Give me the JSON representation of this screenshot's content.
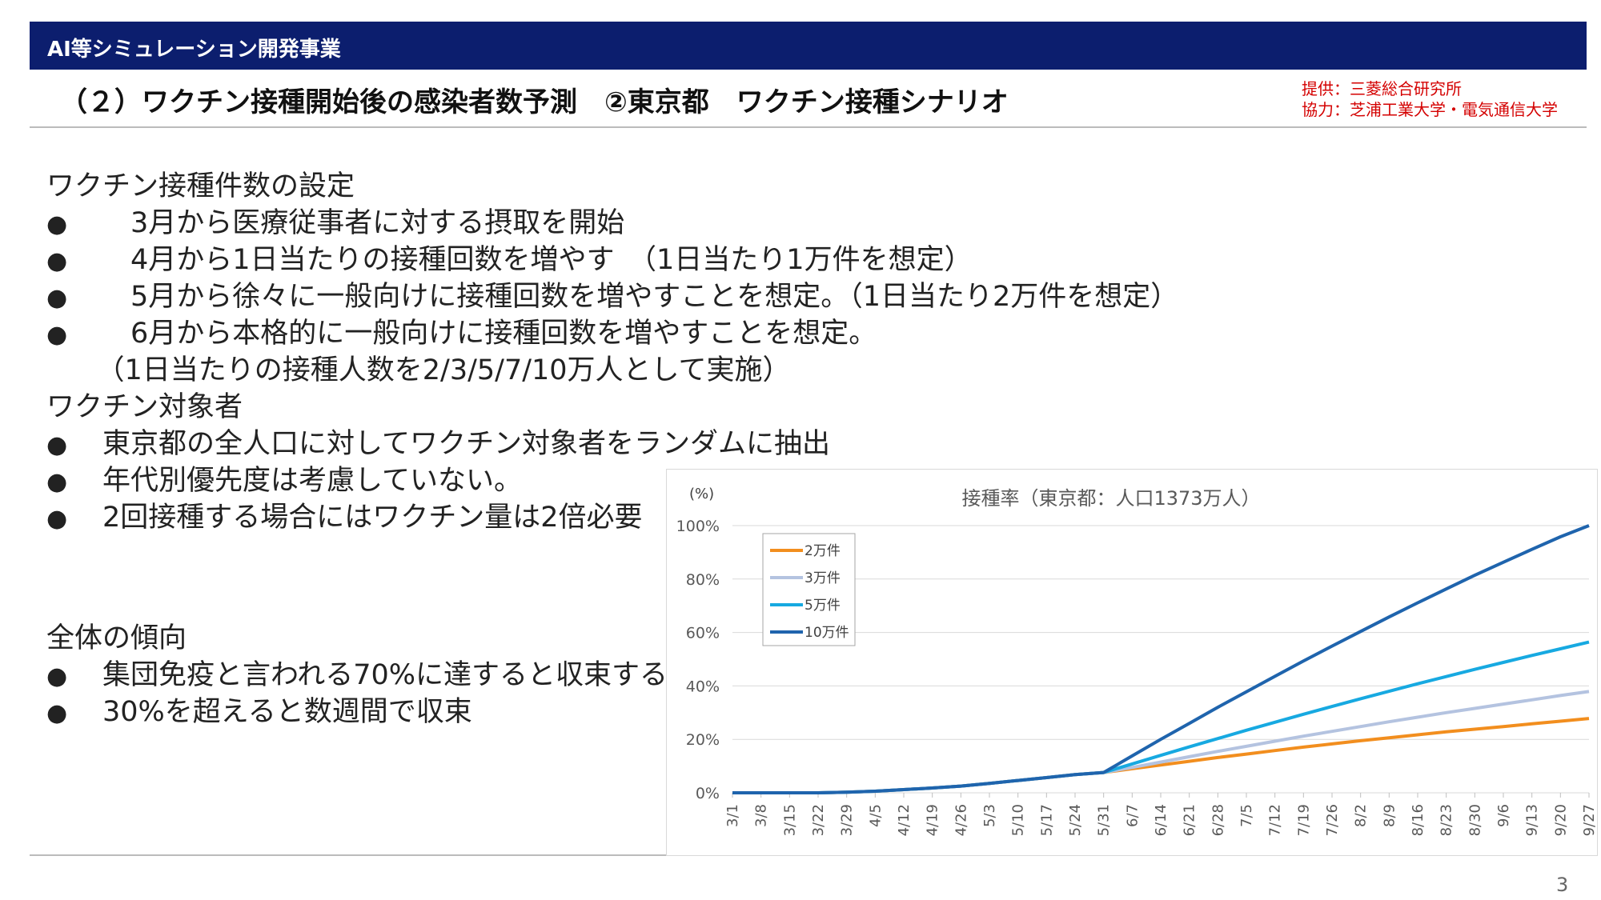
{
  "header": {
    "title": "AI等シミュレーション開発事業"
  },
  "slide": {
    "title": "（２）ワクチン接種開始後の感染者数予測　②東京都　ワクチン接種シナリオ",
    "credits": [
      "提供：三菱総合研究所",
      "協力：芝浦工業大学・電気通信大学"
    ],
    "page_number": "3"
  },
  "content": {
    "lines": [
      {
        "bullet": "",
        "text": "ワクチン接種件数の設定"
      },
      {
        "bullet": "●",
        "text": "　3月から医療従事者に対する摂取を開始"
      },
      {
        "bullet": "●",
        "text": "　4月から1日当たりの接種回数を増やす　（1日当たり1万件を想定）"
      },
      {
        "bullet": "●",
        "text": "　5月から徐々に一般向けに接種回数を増やすことを想定。（1日当たり2万件を想定）"
      },
      {
        "bullet": "●",
        "text": "　6月から本格的に一般向けに接種回数を増やすことを想定。"
      },
      {
        "bullet": "",
        "text": "　（1日当たりの接種人数を2/3/5/7/10万人として実施）"
      },
      {
        "bullet": "",
        "text": "ワクチン対象者"
      },
      {
        "bullet": "●",
        "text": "東京都の全人口に対してワクチン対象者をランダムに抽出"
      },
      {
        "bullet": "●",
        "text": "年代別優先度は考慮していない。"
      },
      {
        "bullet": "●",
        "text": "2回接種する場合にはワクチン量は2倍必要"
      }
    ],
    "lines2": [
      {
        "bullet": "",
        "text": "全体の傾向"
      },
      {
        "bullet": "●",
        "text": "集団免疫と言われる70%に達すると収束する。"
      },
      {
        "bullet": "●",
        "text": "30%を超えると数週間で収束"
      }
    ]
  },
  "chart_data": {
    "type": "line",
    "title": "接種率（東京都：人口1373万人）",
    "ylabel": "(%)",
    "ylim": [
      0,
      100
    ],
    "yticks": [
      "0%",
      "20%",
      "40%",
      "60%",
      "80%",
      "100%"
    ],
    "categories": [
      "3/1",
      "3/8",
      "3/15",
      "3/22",
      "3/29",
      "4/5",
      "4/12",
      "4/19",
      "4/26",
      "5/3",
      "5/10",
      "5/17",
      "5/24",
      "5/31",
      "6/7",
      "6/14",
      "6/21",
      "6/28",
      "7/5",
      "7/12",
      "7/19",
      "7/26",
      "8/2",
      "8/9",
      "8/16",
      "8/23",
      "8/30",
      "9/6",
      "9/13",
      "9/20",
      "9/27"
    ],
    "grid": true,
    "legend_position": "top-left",
    "series": [
      {
        "name": "2万件",
        "color": "#f28e1e",
        "values": [
          0,
          0,
          0,
          0,
          0.2,
          0.6,
          1.2,
          1.8,
          2.5,
          3.5,
          4.6,
          5.7,
          6.8,
          7.6,
          9.0,
          10.4,
          11.8,
          13.2,
          14.5,
          15.8,
          17.1,
          18.3,
          19.5,
          20.6,
          21.7,
          22.8,
          23.8,
          24.8,
          25.8,
          26.8,
          27.8
        ]
      },
      {
        "name": "3万件",
        "color": "#b4c3e0",
        "values": [
          0,
          0,
          0,
          0,
          0.2,
          0.6,
          1.2,
          1.8,
          2.5,
          3.5,
          4.6,
          5.7,
          6.8,
          7.6,
          9.5,
          11.5,
          13.5,
          15.5,
          17.4,
          19.3,
          21.2,
          23.0,
          24.8,
          26.6,
          28.3,
          30.0,
          31.6,
          33.2,
          34.8,
          36.4,
          37.9
        ]
      },
      {
        "name": "5万件",
        "color": "#17a9e1",
        "values": [
          0,
          0,
          0,
          0,
          0.2,
          0.6,
          1.2,
          1.8,
          2.5,
          3.5,
          4.6,
          5.7,
          6.8,
          7.6,
          10.8,
          14.0,
          17.2,
          20.3,
          23.4,
          26.4,
          29.4,
          32.3,
          35.2,
          38.0,
          40.8,
          43.5,
          46.2,
          48.8,
          51.4,
          53.9,
          56.4
        ]
      },
      {
        "name": "10万件",
        "color": "#1f64ad",
        "values": [
          0,
          0,
          0,
          0,
          0.2,
          0.6,
          1.2,
          1.8,
          2.5,
          3.5,
          4.6,
          5.7,
          6.8,
          7.6,
          13.8,
          20.0,
          26.0,
          32.0,
          37.8,
          43.6,
          49.3,
          54.9,
          60.4,
          65.8,
          71.1,
          76.3,
          81.4,
          86.3,
          91.1,
          95.8,
          100
        ]
      }
    ]
  }
}
